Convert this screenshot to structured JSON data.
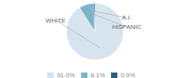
{
  "chart_data": {
    "type": "pie",
    "categories": [
      "WHITE",
      "HISPANIC",
      "A.I."
    ],
    "values": [
      91.0,
      8.1,
      0.9
    ],
    "value_labels": [
      "91.0%",
      "8.1%",
      "0.9%"
    ],
    "colors": [
      "#d6e4ef",
      "#7ab5cc",
      "#2b5f7e"
    ],
    "legend": "bottom"
  }
}
